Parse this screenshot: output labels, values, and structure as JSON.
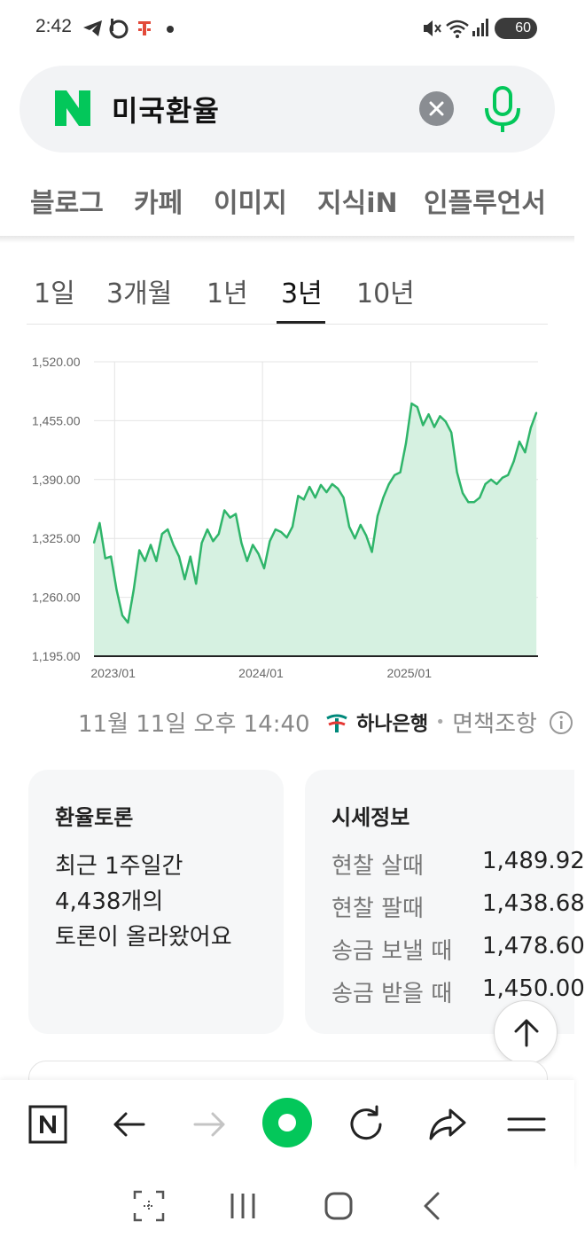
{
  "status_bar": {
    "time": "2:42",
    "battery": "60",
    "icons": [
      "telegram-icon",
      "b-app-icon",
      "t-app-icon",
      "dot-icon",
      "mute-icon",
      "wifi-icon",
      "signal-icon",
      "battery-icon"
    ]
  },
  "search": {
    "query": "미국환율",
    "clear_icon": "close-icon",
    "mic_icon": "microphone-icon",
    "brand_color": "#03c75a"
  },
  "tabs": [
    "블로그",
    "카페",
    "이미지",
    "지식iN",
    "인플루언서"
  ],
  "periods": {
    "items": [
      "1일",
      "3개월",
      "1년",
      "3년",
      "10년"
    ],
    "selected": "3년"
  },
  "chart_data": {
    "type": "area",
    "title": "",
    "xlabel": "",
    "ylabel": "",
    "y_ticks": [
      "1,520.00",
      "1,455.00",
      "1,390.00",
      "1,325.00",
      "1,260.00",
      "1,195.00"
    ],
    "x_ticks": [
      "2023/01",
      "2024/01",
      "2025/01"
    ],
    "ylim": [
      1195,
      1520
    ],
    "xlim": [
      "2022-11",
      "2025-11"
    ],
    "grid": true,
    "color": "#2fb56a",
    "fill": "#d6f1e1",
    "series": [
      {
        "x": [
          "2022-11-11",
          "2022-11-25",
          "2022-12-09",
          "2022-12-23",
          "2023-01-06",
          "2023-01-20",
          "2023-02-03",
          "2023-02-17",
          "2023-03-03",
          "2023-03-17",
          "2023-03-31",
          "2023-04-14",
          "2023-04-28",
          "2023-05-12",
          "2023-05-26",
          "2023-06-09",
          "2023-06-23",
          "2023-07-07",
          "2023-07-21",
          "2023-08-04",
          "2023-08-18",
          "2023-09-01",
          "2023-09-15",
          "2023-09-29",
          "2023-10-13",
          "2023-10-27",
          "2023-11-10",
          "2023-11-24",
          "2023-12-08",
          "2023-12-22",
          "2024-01-05",
          "2024-01-19",
          "2024-02-02",
          "2024-02-16",
          "2024-03-01",
          "2024-03-15",
          "2024-03-29",
          "2024-04-12",
          "2024-04-26",
          "2024-05-10",
          "2024-05-24",
          "2024-06-07",
          "2024-06-21",
          "2024-07-05",
          "2024-07-19",
          "2024-08-02",
          "2024-08-16",
          "2024-08-30",
          "2024-09-13",
          "2024-09-27",
          "2024-10-11",
          "2024-10-25",
          "2024-11-08",
          "2024-11-22",
          "2024-12-06",
          "2024-12-20",
          "2025-01-03",
          "2025-01-17",
          "2025-01-31",
          "2025-02-14",
          "2025-02-28",
          "2025-03-14",
          "2025-03-28",
          "2025-04-11",
          "2025-04-25",
          "2025-05-09",
          "2025-05-23",
          "2025-06-06",
          "2025-06-20",
          "2025-07-04",
          "2025-07-18",
          "2025-08-01",
          "2025-08-15",
          "2025-08-29",
          "2025-09-12",
          "2025-09-26",
          "2025-10-10",
          "2025-10-24",
          "2025-11-07"
        ],
        "values": [
          1320,
          1342,
          1303,
          1305,
          1268,
          1240,
          1232,
          1268,
          1312,
          1300,
          1318,
          1300,
          1330,
          1335,
          1318,
          1305,
          1280,
          1305,
          1275,
          1320,
          1335,
          1322,
          1330,
          1356,
          1348,
          1352,
          1320,
          1300,
          1318,
          1308,
          1292,
          1322,
          1335,
          1332,
          1326,
          1338,
          1372,
          1368,
          1382,
          1370,
          1384,
          1376,
          1385,
          1380,
          1370,
          1338,
          1325,
          1340,
          1328,
          1310,
          1350,
          1370,
          1385,
          1395,
          1398,
          1430,
          1474,
          1470,
          1450,
          1462,
          1448,
          1460,
          1454,
          1442,
          1398,
          1375,
          1365,
          1365,
          1370,
          1385,
          1390,
          1385,
          1392,
          1395,
          1410,
          1432,
          1420,
          1447,
          1464
        ]
      }
    ]
  },
  "source": {
    "timestamp": "11월 11일 오후 14:40",
    "bank": "하나은행",
    "separator": "•",
    "disclaimer": "면책조항",
    "info_icon": "info-icon"
  },
  "discussion_card": {
    "title": "환율토론",
    "lines": [
      "최근 1주일간",
      "4,438개의",
      "토론이 올라왔어요"
    ]
  },
  "quote_card": {
    "title": "시세정보",
    "rows": [
      {
        "label": "현찰 살때",
        "value": "1,489.92"
      },
      {
        "label": "현찰 팔때",
        "value": "1,438.68"
      },
      {
        "label": "송금 보낼 때",
        "value": "1,478.60"
      },
      {
        "label": "송금 받을 때",
        "value": "1,450.00"
      }
    ]
  },
  "scroll_top_icon": "arrow-up-icon",
  "browser_toolbar": [
    "naver-home-icon",
    "back-arrow-icon",
    "forward-arrow-icon",
    "green-dot-icon",
    "refresh-icon",
    "share-icon",
    "menu-icon"
  ],
  "nav_bar": [
    "screenshot-scan-icon",
    "recent-apps-icon",
    "home-icon",
    "back-icon"
  ]
}
